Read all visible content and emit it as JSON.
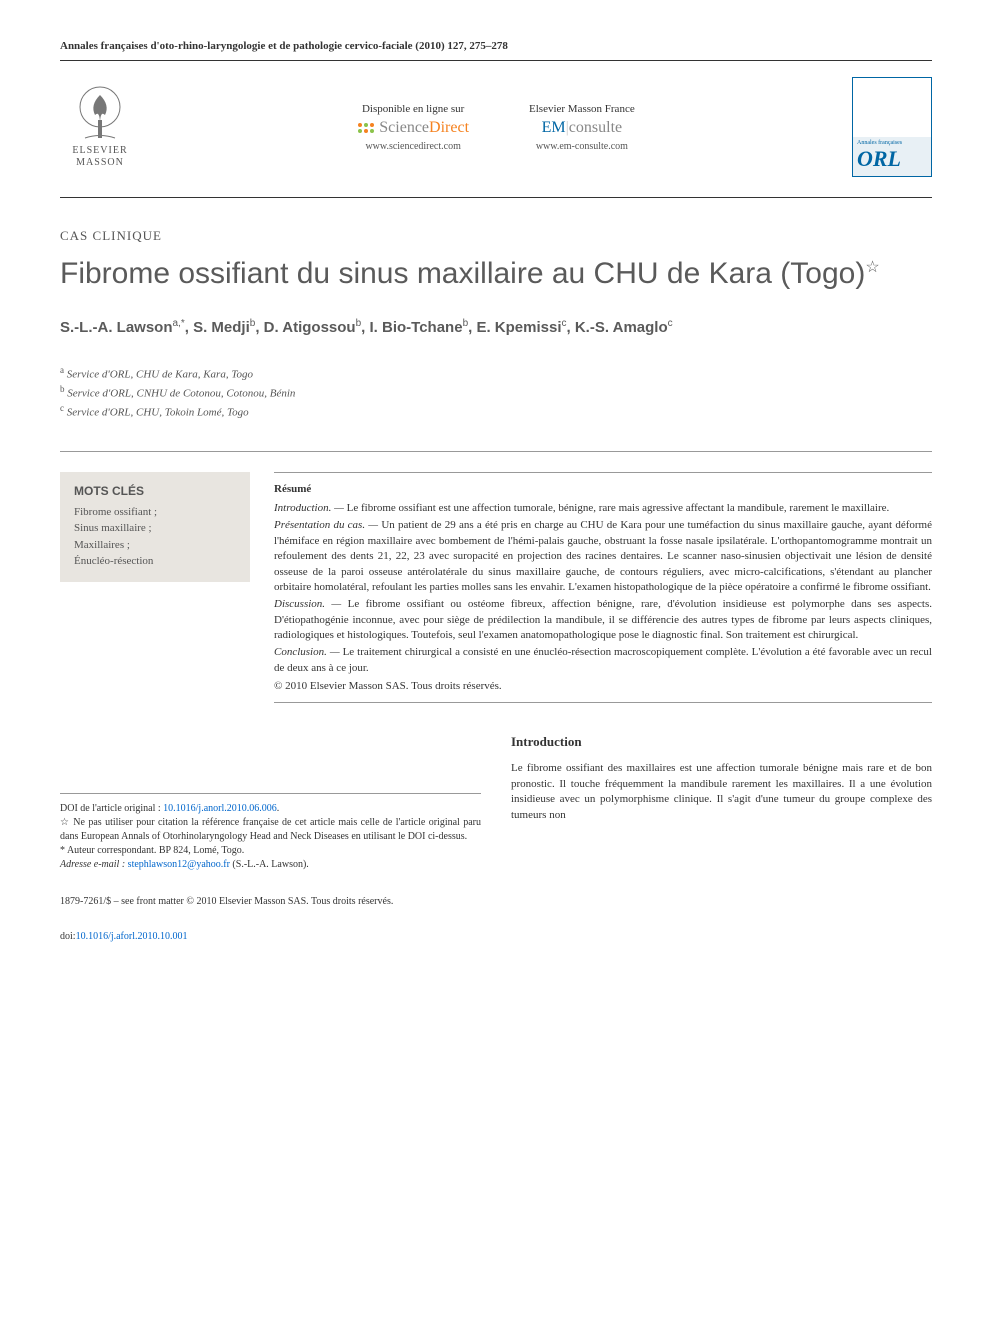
{
  "journal_citation": "Annales françaises d'oto-rhino-laryngologie et de pathologie cervico-faciale (2010) 127, 275–278",
  "header": {
    "publisher_name": "ELSEVIER\nMASSON",
    "sd_available": "Disponible en ligne sur",
    "sd_brand_prefix": "Science",
    "sd_brand_suffix": "Direct",
    "sd_url": "www.sciencedirect.com",
    "em_title": "Elsevier Masson France",
    "em_brand_prefix": "EM",
    "em_brand_suffix": "consulte",
    "em_url": "www.em-consulte.com",
    "orl_label": "ORL"
  },
  "article_type": "CAS CLINIQUE",
  "title": "Fibrome ossifiant du sinus maxillaire au CHU de Kara (Togo)",
  "title_star": "☆",
  "authors_html": "S.-L.-A. Lawson<sup>a,*</sup>, S. Medji<sup>b</sup>, D. Atigossou<sup>b</sup>, I. Bio-Tchane<sup>b</sup>, E. Kpemissi<sup>c</sup>, K.-S. Amaglo<sup>c</sup>",
  "affiliations": [
    {
      "sup": "a",
      "text": "Service d'ORL, CHU de Kara, Kara, Togo"
    },
    {
      "sup": "b",
      "text": "Service d'ORL, CNHU de Cotonou, Cotonou, Bénin"
    },
    {
      "sup": "c",
      "text": "Service d'ORL, CHU, Tokoin Lomé, Togo"
    }
  ],
  "keywords": {
    "title": "MOTS CLÉS",
    "items": "Fibrome ossifiant ;\nSinus maxillaire ;\nMaxillaires ;\nÉnucléo-résection"
  },
  "abstract": {
    "heading": "Résumé",
    "introduction_label": "Introduction. —",
    "introduction_text": "Le fibrome ossifiant est une affection tumorale, bénigne, rare mais agressive affectant la mandibule, rarement le maxillaire.",
    "presentation_label": "Présentation du cas. —",
    "presentation_text": "Un patient de 29 ans a été pris en charge au CHU de Kara pour une tuméfaction du sinus maxillaire gauche, ayant déformé l'hémiface en région maxillaire avec bombement de l'hémi-palais gauche, obstruant la fosse nasale ipsilatérale. L'orthopantomogramme montrait un refoulement des dents 21, 22, 23 avec suropacité en projection des racines dentaires. Le scanner naso-sinusien objectivait une lésion de densité osseuse de la paroi osseuse antérolatérale du sinus maxillaire gauche, de contours réguliers, avec micro-calcifications, s'étendant au plancher orbitaire homolatéral, refoulant les parties molles sans les envahir. L'examen histopathologique de la pièce opératoire a confirmé le fibrome ossifiant.",
    "discussion_label": "Discussion. —",
    "discussion_text": "Le fibrome ossifiant ou ostéome fibreux, affection bénigne, rare, d'évolution insidieuse est polymorphe dans ses aspects. D'étiopathogénie inconnue, avec pour siège de prédilection la mandibule, il se différencie des autres types de fibrome par leurs aspects cliniques, radiologiques et histologiques. Toutefois, seul l'examen anatomopathologique pose le diagnostic final. Son traitement est chirurgical.",
    "conclusion_label": "Conclusion. —",
    "conclusion_text": "Le traitement chirurgical a consisté en une énucléo-résection macroscopiquement complète. L'évolution a été favorable avec un recul de deux ans à ce jour.",
    "copyright": "© 2010 Elsevier Masson SAS. Tous droits réservés."
  },
  "footnotes": {
    "doi_label": "DOI de l'article original : ",
    "doi_value": "10.1016/j.anorl.2010.06.006",
    "doi_suffix": ".",
    "star_note": "☆ Ne pas utiliser pour citation la référence française de cet article mais celle de l'article original paru dans European Annals of Otorhinolaryngology Head and Neck Diseases en utilisant le DOI ci-dessus.",
    "corr_label": "* Auteur correspondant. BP 824, Lomé, Togo.",
    "email_label": "Adresse e-mail : ",
    "email_value": "stephlawson12@yahoo.fr",
    "email_suffix": " (S.-L.-A. Lawson)."
  },
  "intro": {
    "heading": "Introduction",
    "text": "Le fibrome ossifiant des maxillaires est une affection tumorale bénigne mais rare et de bon pronostic. Il touche fréquemment la mandibule rarement les maxillaires. Il a une évolution insidieuse avec un polymorphisme clinique. Il s'agit d'une tumeur du groupe complexe des tumeurs non"
  },
  "footer": {
    "issn": "1879-7261/$ – see front matter © 2010 Elsevier Masson SAS. Tous droits réservés.",
    "doi_prefix": "doi:",
    "doi": "10.1016/j.aforl.2010.10.001"
  },
  "colors": {
    "text": "#333333",
    "title_gray": "#5a5a5a",
    "link_blue": "#0066cc",
    "brand_blue": "#0066a4",
    "brand_orange": "#f58220",
    "keywords_bg": "#e8e5e0"
  }
}
